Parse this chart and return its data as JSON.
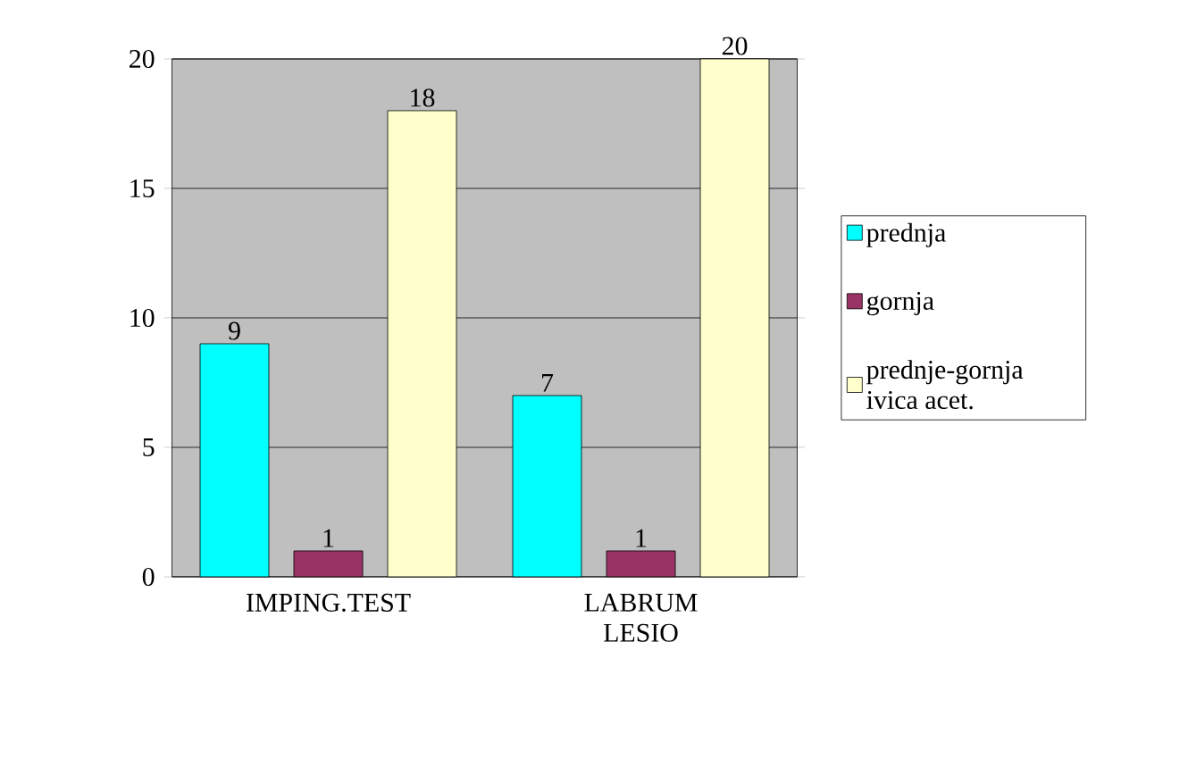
{
  "chart_data": {
    "type": "bar",
    "categories": [
      "IMPING.TEST",
      "LABRUM LESIO"
    ],
    "series": [
      {
        "name": "prednja",
        "color": "#00ffff",
        "values": [
          9,
          7
        ]
      },
      {
        "name": "gornja",
        "color": "#993366",
        "values": [
          1,
          1
        ]
      },
      {
        "name": "prednje-gornja ivica acet.",
        "color": "#ffffcc",
        "values": [
          18,
          20
        ]
      }
    ],
    "ylim": [
      0,
      20
    ],
    "yticks": [
      0,
      5,
      10,
      15,
      20
    ],
    "grid": "y",
    "legend": "right",
    "data_labels": true
  }
}
